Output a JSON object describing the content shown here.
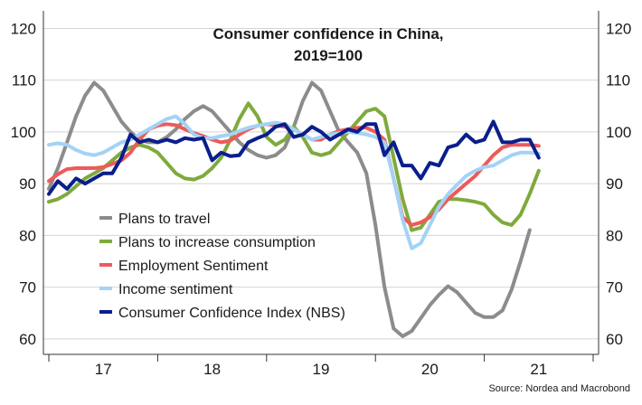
{
  "chart_data": {
    "type": "line",
    "title": "Consumer confidence in China,",
    "subtitle": "2019=100",
    "source": "Source: Nordea and Macrobond",
    "xlabel": "",
    "ylabel": "",
    "ylim": [
      57,
      122
    ],
    "xlim": [
      2016.45,
      2021.55
    ],
    "yticks": [
      "60",
      "70",
      "80",
      "90",
      "100",
      "110",
      "120"
    ],
    "x_ticks_labels": [
      {
        "label": "17",
        "x": 2017.0
      },
      {
        "label": "18",
        "x": 2018.0
      },
      {
        "label": "19",
        "x": 2019.0
      },
      {
        "label": "20",
        "x": 2020.0
      },
      {
        "label": "21",
        "x": 2021.0
      }
    ],
    "grid": true,
    "legend_position": "lower-left",
    "series": [
      {
        "name": "Plans to travel",
        "color": "#8c8c8c",
        "points": [
          [
            2016.5,
            89
          ],
          [
            2016.583,
            93
          ],
          [
            2016.667,
            98
          ],
          [
            2016.75,
            103
          ],
          [
            2016.833,
            107
          ],
          [
            2016.917,
            109.5
          ],
          [
            2017.0,
            108
          ],
          [
            2017.083,
            105
          ],
          [
            2017.167,
            102
          ],
          [
            2017.25,
            100
          ],
          [
            2017.333,
            98.5
          ],
          [
            2017.417,
            98
          ],
          [
            2017.5,
            98
          ],
          [
            2017.583,
            99
          ],
          [
            2017.667,
            100.5
          ],
          [
            2017.75,
            102.5
          ],
          [
            2017.833,
            104
          ],
          [
            2017.917,
            105
          ],
          [
            2018.0,
            104
          ],
          [
            2018.083,
            102
          ],
          [
            2018.167,
            100
          ],
          [
            2018.25,
            98
          ],
          [
            2018.333,
            96.5
          ],
          [
            2018.417,
            95.5
          ],
          [
            2018.5,
            95
          ],
          [
            2018.583,
            95.5
          ],
          [
            2018.667,
            97
          ],
          [
            2018.75,
            101
          ],
          [
            2018.833,
            106
          ],
          [
            2018.917,
            109.5
          ],
          [
            2019.0,
            108
          ],
          [
            2019.083,
            104
          ],
          [
            2019.167,
            100
          ],
          [
            2019.25,
            98
          ],
          [
            2019.333,
            96
          ],
          [
            2019.417,
            92
          ],
          [
            2019.5,
            82
          ],
          [
            2019.583,
            70
          ],
          [
            2019.667,
            62
          ],
          [
            2019.75,
            60.5
          ],
          [
            2019.833,
            61.5
          ],
          [
            2019.917,
            64
          ],
          [
            2020.0,
            66.5
          ],
          [
            2020.083,
            68.5
          ],
          [
            2020.167,
            70.2
          ],
          [
            2020.25,
            69
          ],
          [
            2020.333,
            67
          ],
          [
            2020.417,
            65
          ],
          [
            2020.5,
            64.2
          ],
          [
            2020.583,
            64.2
          ],
          [
            2020.667,
            65.5
          ],
          [
            2020.75,
            69.5
          ],
          [
            2020.833,
            75
          ],
          [
            2020.917,
            81
          ]
        ]
      },
      {
        "name": "Plans to increase consumption",
        "color": "#7faa3c",
        "points": [
          [
            2016.5,
            86.5
          ],
          [
            2016.583,
            87
          ],
          [
            2016.667,
            88
          ],
          [
            2016.75,
            89.5
          ],
          [
            2016.833,
            91
          ],
          [
            2016.917,
            92
          ],
          [
            2017.0,
            93
          ],
          [
            2017.083,
            94.5
          ],
          [
            2017.167,
            96
          ],
          [
            2017.25,
            97
          ],
          [
            2017.333,
            97.5
          ],
          [
            2017.417,
            97
          ],
          [
            2017.5,
            96
          ],
          [
            2017.583,
            94
          ],
          [
            2017.667,
            92
          ],
          [
            2017.75,
            91
          ],
          [
            2017.833,
            90.8
          ],
          [
            2017.917,
            91.5
          ],
          [
            2018.0,
            93
          ],
          [
            2018.083,
            95
          ],
          [
            2018.167,
            98.5
          ],
          [
            2018.25,
            102.5
          ],
          [
            2018.333,
            105.5
          ],
          [
            2018.417,
            103
          ],
          [
            2018.5,
            99
          ],
          [
            2018.583,
            97.5
          ],
          [
            2018.667,
            98.5
          ],
          [
            2018.75,
            101
          ],
          [
            2018.833,
            99
          ],
          [
            2018.917,
            96
          ],
          [
            2019.0,
            95.5
          ],
          [
            2019.083,
            96
          ],
          [
            2019.167,
            98
          ],
          [
            2019.25,
            100
          ],
          [
            2019.333,
            102
          ],
          [
            2019.417,
            104
          ],
          [
            2019.5,
            104.5
          ],
          [
            2019.583,
            103
          ],
          [
            2019.667,
            95
          ],
          [
            2019.75,
            87
          ],
          [
            2019.833,
            81
          ],
          [
            2019.917,
            81.5
          ],
          [
            2020.0,
            84
          ],
          [
            2020.083,
            86.5
          ],
          [
            2020.167,
            87
          ],
          [
            2020.25,
            87
          ],
          [
            2020.333,
            86.8
          ],
          [
            2020.417,
            86.5
          ],
          [
            2020.5,
            86
          ],
          [
            2020.583,
            84
          ],
          [
            2020.667,
            82.5
          ],
          [
            2020.75,
            82
          ],
          [
            2020.833,
            84
          ],
          [
            2020.917,
            88
          ],
          [
            2021.0,
            92.5
          ]
        ]
      },
      {
        "name": "Employment Sentiment",
        "color": "#ee5a5a",
        "points": [
          [
            2016.5,
            90.5
          ],
          [
            2016.583,
            91.8
          ],
          [
            2016.667,
            92.8
          ],
          [
            2016.75,
            93
          ],
          [
            2016.833,
            93
          ],
          [
            2016.917,
            93
          ],
          [
            2017.0,
            93.2
          ],
          [
            2017.083,
            93.8
          ],
          [
            2017.167,
            94.5
          ],
          [
            2017.25,
            96
          ],
          [
            2017.333,
            98.5
          ],
          [
            2017.417,
            100.5
          ],
          [
            2017.5,
            101.2
          ],
          [
            2017.583,
            101.5
          ],
          [
            2017.667,
            101.3
          ],
          [
            2017.75,
            100.5
          ],
          [
            2017.833,
            99.8
          ],
          [
            2017.917,
            99.2
          ],
          [
            2018.0,
            98.5
          ],
          [
            2018.083,
            98
          ],
          [
            2018.167,
            98.3
          ],
          [
            2018.25,
            99.5
          ],
          [
            2018.333,
            100.5
          ],
          [
            2018.417,
            101.2
          ],
          [
            2018.5,
            101.5
          ],
          [
            2018.583,
            101.3
          ],
          [
            2018.667,
            101
          ],
          [
            2018.75,
            100.5
          ],
          [
            2018.833,
            99.5
          ],
          [
            2018.917,
            98.5
          ],
          [
            2019.0,
            98.5
          ],
          [
            2019.083,
            99.5
          ],
          [
            2019.167,
            100.2
          ],
          [
            2019.25,
            100.5
          ],
          [
            2019.333,
            100.8
          ],
          [
            2019.417,
            100.8
          ],
          [
            2019.5,
            100
          ],
          [
            2019.583,
            98.5
          ],
          [
            2019.667,
            91
          ],
          [
            2019.75,
            83.5
          ],
          [
            2019.833,
            82
          ],
          [
            2019.917,
            82.5
          ],
          [
            2020.0,
            83.5
          ],
          [
            2020.083,
            85
          ],
          [
            2020.167,
            87
          ],
          [
            2020.25,
            88.5
          ],
          [
            2020.333,
            90
          ],
          [
            2020.417,
            91.5
          ],
          [
            2020.5,
            93.5
          ],
          [
            2020.583,
            95.5
          ],
          [
            2020.667,
            97
          ],
          [
            2020.75,
            97.5
          ],
          [
            2020.833,
            97.5
          ],
          [
            2020.917,
            97.5
          ],
          [
            2021.0,
            97.3
          ]
        ]
      },
      {
        "name": "Income sentiment",
        "color": "#a3d3f5",
        "points": [
          [
            2016.5,
            97.5
          ],
          [
            2016.583,
            97.8
          ],
          [
            2016.667,
            97.5
          ],
          [
            2016.75,
            96.5
          ],
          [
            2016.833,
            95.8
          ],
          [
            2016.917,
            95.5
          ],
          [
            2017.0,
            96
          ],
          [
            2017.083,
            97
          ],
          [
            2017.167,
            98
          ],
          [
            2017.25,
            98.5
          ],
          [
            2017.333,
            99.5
          ],
          [
            2017.417,
            100.5
          ],
          [
            2017.5,
            101.5
          ],
          [
            2017.583,
            102.5
          ],
          [
            2017.667,
            103
          ],
          [
            2017.75,
            101.5
          ],
          [
            2017.833,
            99.5
          ],
          [
            2017.917,
            98.8
          ],
          [
            2018.0,
            98.8
          ],
          [
            2018.083,
            99.2
          ],
          [
            2018.167,
            99.5
          ],
          [
            2018.25,
            100.2
          ],
          [
            2018.333,
            100.8
          ],
          [
            2018.417,
            101.2
          ],
          [
            2018.5,
            101.5
          ],
          [
            2018.583,
            101.8
          ],
          [
            2018.667,
            101.5
          ],
          [
            2018.75,
            100.5
          ],
          [
            2018.833,
            99.5
          ],
          [
            2018.917,
            98.5
          ],
          [
            2019.0,
            99
          ],
          [
            2019.083,
            99.5
          ],
          [
            2019.167,
            99.8
          ],
          [
            2019.25,
            100
          ],
          [
            2019.333,
            99.8
          ],
          [
            2019.417,
            99.5
          ],
          [
            2019.5,
            99
          ],
          [
            2019.583,
            98
          ],
          [
            2019.667,
            91
          ],
          [
            2019.75,
            83
          ],
          [
            2019.833,
            77.5
          ],
          [
            2019.917,
            78.5
          ],
          [
            2020.0,
            82
          ],
          [
            2020.083,
            85.5
          ],
          [
            2020.167,
            88
          ],
          [
            2020.25,
            89.8
          ],
          [
            2020.333,
            91.5
          ],
          [
            2020.417,
            92.5
          ],
          [
            2020.5,
            93.2
          ],
          [
            2020.583,
            93.5
          ],
          [
            2020.667,
            94.5
          ],
          [
            2020.75,
            95.5
          ],
          [
            2020.833,
            96
          ],
          [
            2020.917,
            96
          ],
          [
            2021.0,
            95.8
          ]
        ]
      },
      {
        "name": "Consumer Confidence Index (NBS)",
        "color": "#0a1e8c",
        "points": [
          [
            2016.5,
            88
          ],
          [
            2016.583,
            90.5
          ],
          [
            2016.667,
            89
          ],
          [
            2016.75,
            91
          ],
          [
            2016.833,
            90
          ],
          [
            2016.917,
            91
          ],
          [
            2017.0,
            92
          ],
          [
            2017.083,
            92
          ],
          [
            2017.167,
            95
          ],
          [
            2017.25,
            99.5
          ],
          [
            2017.333,
            98
          ],
          [
            2017.417,
            98.5
          ],
          [
            2017.5,
            98
          ],
          [
            2017.583,
            98.5
          ],
          [
            2017.667,
            98
          ],
          [
            2017.75,
            98.8
          ],
          [
            2017.833,
            98.5
          ],
          [
            2017.917,
            98.8
          ],
          [
            2018.0,
            94.5
          ],
          [
            2018.083,
            96
          ],
          [
            2018.167,
            95.3
          ],
          [
            2018.25,
            95.5
          ],
          [
            2018.333,
            98
          ],
          [
            2018.417,
            98.8
          ],
          [
            2018.5,
            99.5
          ],
          [
            2018.583,
            101
          ],
          [
            2018.667,
            101.5
          ],
          [
            2018.75,
            99
          ],
          [
            2018.833,
            99.5
          ],
          [
            2018.917,
            101
          ],
          [
            2019.0,
            100
          ],
          [
            2019.083,
            98.5
          ],
          [
            2019.167,
            99.5
          ],
          [
            2019.25,
            100.5
          ],
          [
            2019.333,
            100
          ],
          [
            2019.417,
            101.5
          ],
          [
            2019.5,
            101.5
          ],
          [
            2019.583,
            95.5
          ],
          [
            2019.667,
            98
          ],
          [
            2019.75,
            93.5
          ],
          [
            2019.833,
            93.5
          ],
          [
            2019.917,
            91
          ],
          [
            2020.0,
            94
          ],
          [
            2020.083,
            93.5
          ],
          [
            2020.167,
            97
          ],
          [
            2020.25,
            97.5
          ],
          [
            2020.333,
            99.5
          ],
          [
            2020.417,
            98
          ],
          [
            2020.5,
            98.5
          ],
          [
            2020.583,
            102
          ],
          [
            2020.667,
            98
          ],
          [
            2020.75,
            98
          ],
          [
            2020.833,
            98.5
          ],
          [
            2020.917,
            98.5
          ],
          [
            2021.0,
            95
          ]
        ]
      }
    ]
  }
}
